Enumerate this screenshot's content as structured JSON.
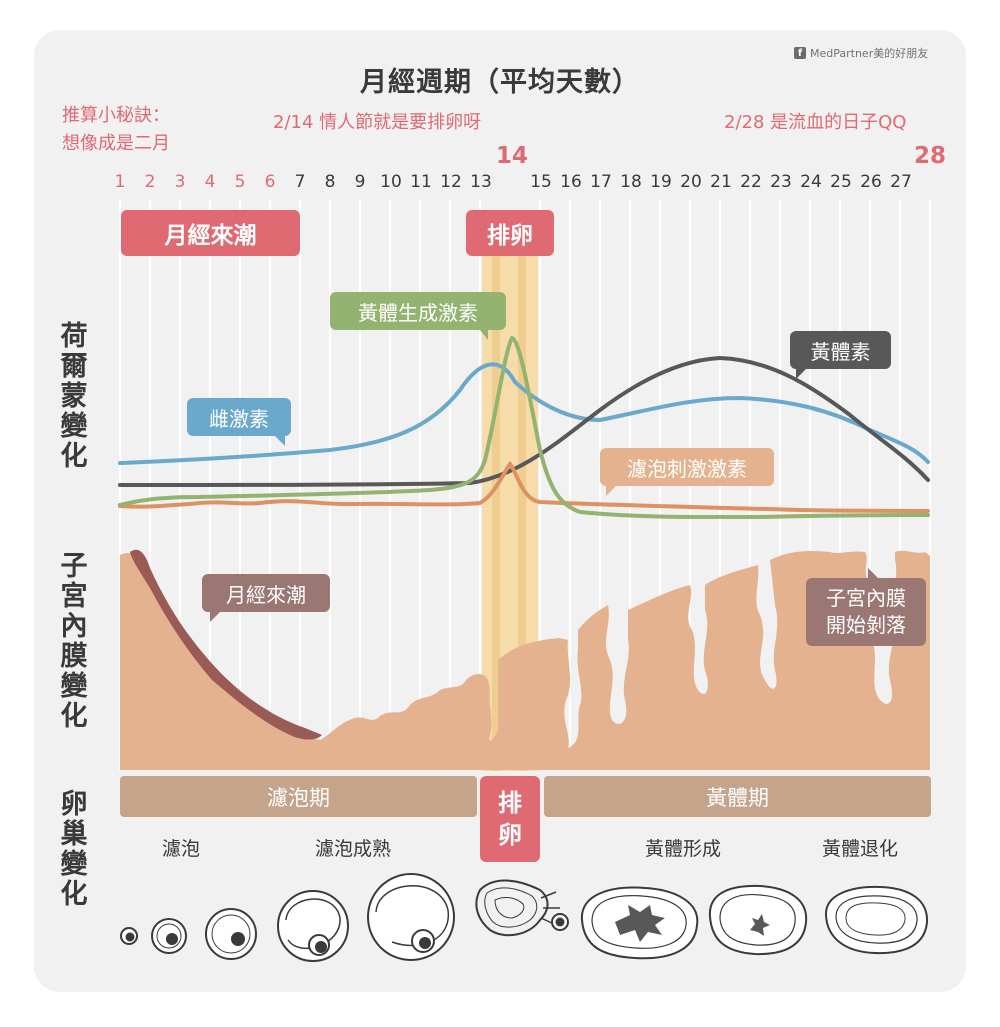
{
  "brand": "MedPartner美的好朋友",
  "brand_icon": "facebook-icon",
  "title": "月經週期（平均天數）",
  "tip": {
    "line1": "推算小秘訣：",
    "line2": "想像成是二月"
  },
  "note14": "2/14 情人節就是要排卵呀",
  "note28": "2/28 是流血的日子QQ",
  "big14": "14",
  "big28": "28",
  "days": [
    "1",
    "2",
    "3",
    "4",
    "5",
    "6",
    "7",
    "8",
    "9",
    "10",
    "11",
    "12",
    "13",
    "15",
    "16",
    "17",
    "18",
    "19",
    "20",
    "21",
    "22",
    "23",
    "24",
    "25",
    "26",
    "27"
  ],
  "labels": {
    "hormone": "荷爾蒙變化",
    "endometrium": "子宮內膜變化",
    "ovary": "卵巢變化"
  },
  "tags": {
    "menses": "月經來潮",
    "ovulation": "排卵"
  },
  "bubbles": {
    "lh": "黃體生成激素",
    "progesterone": "黃體素",
    "estrogen": "雌激素",
    "fsh": "濾泡刺激激素",
    "menses": "月經來潮",
    "shedding_line1": "子宮內膜",
    "shedding_line2": "開始剝落"
  },
  "phases": {
    "follicular": "濾泡期",
    "ovulation_line1": "排",
    "ovulation_line2": "卵",
    "luteal": "黃體期"
  },
  "stages": [
    "濾泡",
    "濾泡成熟",
    "黃體形成",
    "黃體退化"
  ],
  "colors": {
    "pink": "#e06a72",
    "estrogen": "#6aa9cc",
    "lh": "#93b371",
    "progesterone": "#585858",
    "fsh": "#de9263",
    "endometrium": "#e4b28e",
    "menses_blood": "#9a5b55",
    "phase_bar": "#c4a48b",
    "ovulation_band": "#f6dcaa"
  }
}
